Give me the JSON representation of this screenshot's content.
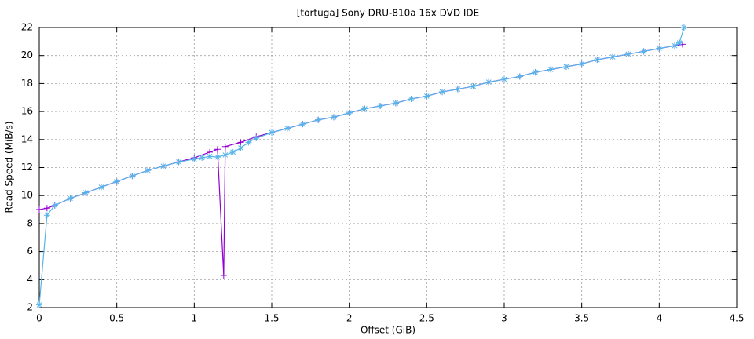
{
  "chart_data": {
    "type": "line",
    "title": "[tortuga] Sony DRU-810a 16x DVD IDE",
    "x_label": "Offset (GiB)",
    "y_label": "Read Speed (MiB/s)",
    "xlim": [
      0,
      4.5
    ],
    "xticks": [
      0,
      0.5,
      1,
      1.5,
      2,
      2.5,
      3,
      3.5,
      4,
      4.5
    ],
    "ylim": [
      2,
      22
    ],
    "yticks": [
      2,
      4,
      6,
      8,
      10,
      12,
      14,
      16,
      18,
      20,
      22
    ],
    "grid": true,
    "series": [
      {
        "color": "#9400d3",
        "marker": "plus",
        "x": [
          0,
          0.05,
          0.1,
          0.2,
          0.3,
          0.4,
          0.5,
          0.6,
          0.7,
          0.8,
          0.9,
          1.0,
          1.1,
          1.15,
          1.19,
          1.2,
          1.3,
          1.4,
          1.5,
          1.6,
          1.7,
          1.8,
          1.9,
          2.0,
          2.1,
          2.2,
          2.3,
          2.4,
          2.5,
          2.6,
          2.7,
          2.8,
          2.9,
          3.0,
          3.1,
          3.2,
          3.3,
          3.4,
          3.5,
          3.6,
          3.7,
          3.8,
          3.9,
          4.0,
          4.1,
          4.15
        ],
        "values": [
          9.0,
          9.1,
          9.3,
          9.8,
          10.2,
          10.6,
          11.0,
          11.4,
          11.8,
          12.1,
          12.4,
          12.7,
          13.1,
          13.3,
          4.3,
          13.5,
          13.8,
          14.2,
          14.5,
          14.8,
          15.1,
          15.4,
          15.6,
          15.9,
          16.2,
          16.4,
          16.6,
          16.9,
          17.1,
          17.4,
          17.6,
          17.8,
          18.1,
          18.3,
          18.5,
          18.8,
          19.0,
          19.2,
          19.4,
          19.7,
          19.9,
          20.1,
          20.3,
          20.5,
          20.7,
          20.8
        ]
      },
      {
        "color": "#56b4e9",
        "marker": "star",
        "x": [
          0,
          0.05,
          0.1,
          0.2,
          0.3,
          0.4,
          0.5,
          0.6,
          0.7,
          0.8,
          0.9,
          1.0,
          1.05,
          1.1,
          1.15,
          1.2,
          1.25,
          1.3,
          1.35,
          1.4,
          1.5,
          1.6,
          1.7,
          1.8,
          1.9,
          2.0,
          2.1,
          2.2,
          2.3,
          2.4,
          2.5,
          2.6,
          2.7,
          2.8,
          2.9,
          3.0,
          3.1,
          3.2,
          3.3,
          3.4,
          3.5,
          3.6,
          3.7,
          3.8,
          3.9,
          4.0,
          4.1,
          4.13,
          4.16
        ],
        "values": [
          2.2,
          8.6,
          9.3,
          9.8,
          10.2,
          10.6,
          11.0,
          11.4,
          11.8,
          12.1,
          12.4,
          12.6,
          12.7,
          12.8,
          12.75,
          12.9,
          13.1,
          13.4,
          13.8,
          14.1,
          14.5,
          14.8,
          15.1,
          15.4,
          15.6,
          15.9,
          16.2,
          16.4,
          16.6,
          16.9,
          17.1,
          17.4,
          17.6,
          17.8,
          18.1,
          18.3,
          18.5,
          18.8,
          19.0,
          19.2,
          19.4,
          19.7,
          19.9,
          20.1,
          20.3,
          20.5,
          20.7,
          20.9,
          22.0
        ]
      }
    ]
  }
}
